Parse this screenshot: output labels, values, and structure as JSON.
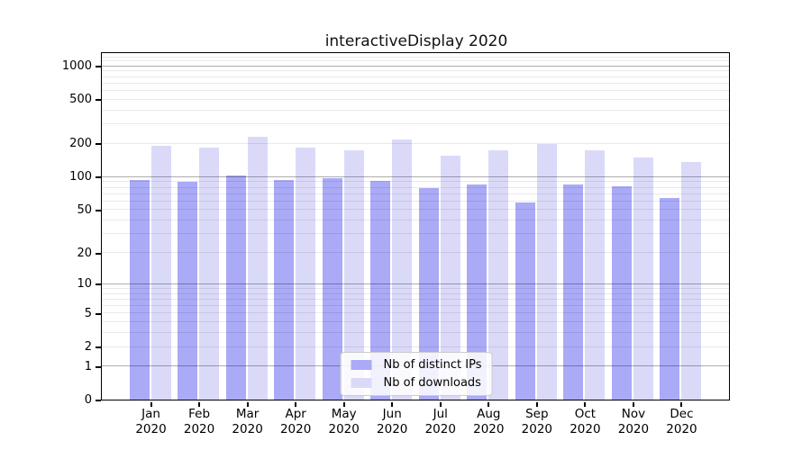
{
  "title": "interactiveDisplay 2020",
  "chart_data": {
    "type": "bar",
    "title": "interactiveDisplay 2020",
    "categories": [
      "Jan",
      "Feb",
      "Mar",
      "Apr",
      "May",
      "Jun",
      "Jul",
      "Aug",
      "Sep",
      "Oct",
      "Nov",
      "Dec"
    ],
    "category_year": "2020",
    "series": [
      {
        "name": "Nb of distinct IPs",
        "color": "#aaaaf7",
        "values": [
          93,
          90,
          102,
          93,
          96,
          92,
          79,
          85,
          58,
          85,
          81,
          64
        ]
      },
      {
        "name": "Nb of downloads",
        "color": "#dadaf8",
        "values": [
          191,
          184,
          228,
          184,
          172,
          215,
          155,
          174,
          196,
          174,
          150,
          136
        ]
      }
    ],
    "y_scale": "log10(v+1)",
    "ylim": [
      0,
      1300
    ],
    "y_ticks": [
      1000,
      500,
      200,
      100,
      50,
      20,
      10,
      5,
      2,
      1,
      0
    ],
    "grid_major": [
      1,
      10,
      100,
      1000
    ],
    "grid_minor": [
      2,
      3,
      4,
      5,
      6,
      7,
      8,
      9,
      20,
      30,
      40,
      50,
      60,
      70,
      80,
      90,
      200,
      300,
      400,
      500,
      600,
      700,
      800,
      900,
      1100,
      1200
    ],
    "legend_position": "bottom-center",
    "xlabel": "",
    "ylabel": ""
  }
}
